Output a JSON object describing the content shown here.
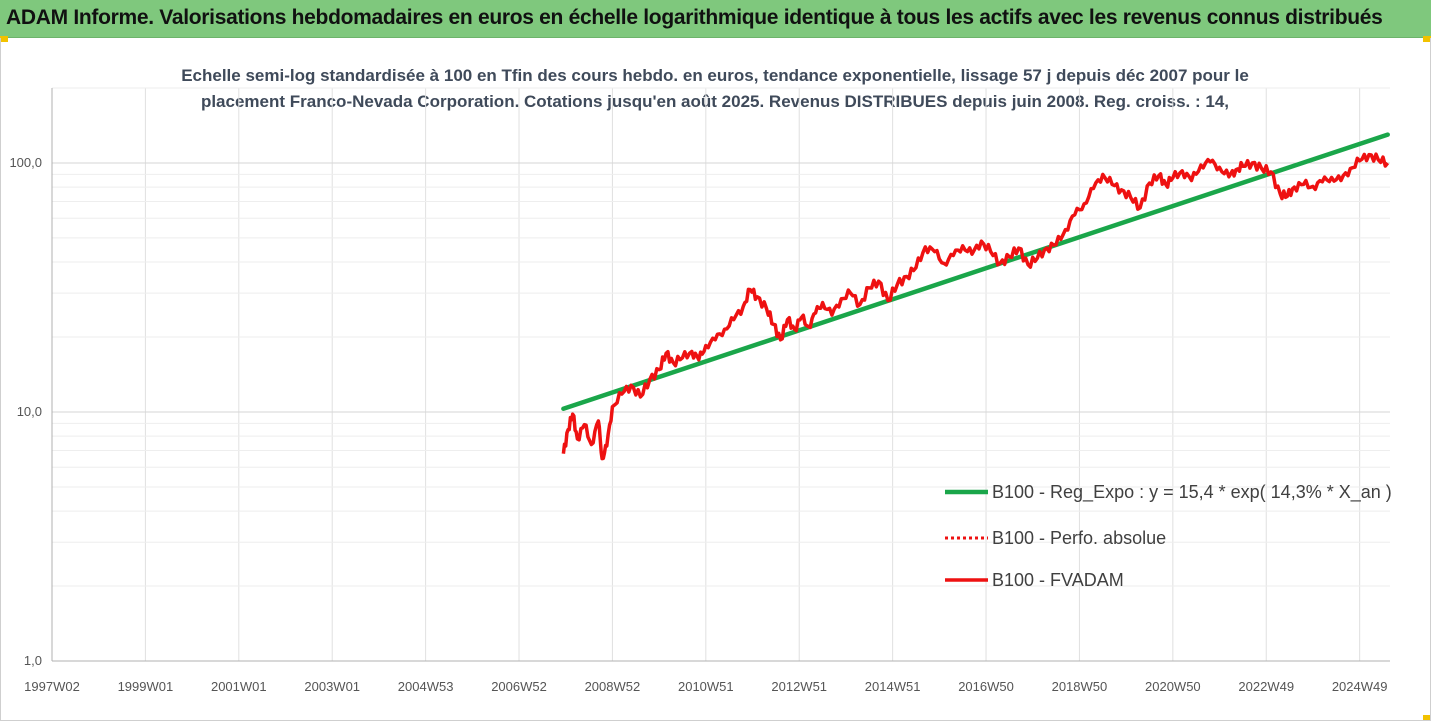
{
  "banner": {
    "title": "ADAM Informe. Valorisations hebdomadaires en euros en échelle logarithmique identique à tous les actifs avec les revenus connus distribués"
  },
  "colors": {
    "banner": "#7fc87d",
    "regression": "#1aa64a",
    "fvadam": "#ee1111",
    "gridline": "#e0e0e0"
  },
  "chart_data": {
    "type": "line",
    "title": "Echelle semi-log standardisée à 100 en Tfin des cours hebdo. en euros, tendance exponentielle, lissage 57 j depuis déc 2007 pour le placement Franco-Nevada Corporation. Cotations jusqu'en août 2025. Revenus DISTRIBUES depuis juin 2008. Reg. croiss. : 14,",
    "title_lines": [
      "Echelle semi-log standardisée à 100 en Tfin des cours hebdo. en euros, tendance exponentielle, lissage 57 j depuis déc 2007 pour le",
      "placement Franco-Nevada Corporation. Cotations jusqu'en août 2025. Revenus DISTRIBUES depuis juin 2008. Reg. croiss. : 14,"
    ],
    "y_scale": "log",
    "ylim": [
      1,
      200
    ],
    "y_ticks": [
      {
        "value": 1,
        "label": "1,0"
      },
      {
        "value": 10,
        "label": "10,0"
      },
      {
        "value": 100,
        "label": "100,0"
      }
    ],
    "xlim": [
      1997.0,
      2025.65
    ],
    "x_ticks": [
      {
        "value": 1997.0,
        "label": "1997W02"
      },
      {
        "value": 1999.0,
        "label": "1999W01"
      },
      {
        "value": 2001.0,
        "label": "2001W01"
      },
      {
        "value": 2003.0,
        "label": "2003W01"
      },
      {
        "value": 2005.0,
        "label": "2004W53"
      },
      {
        "value": 2007.0,
        "label": "2006W52"
      },
      {
        "value": 2009.0,
        "label": "2008W52"
      },
      {
        "value": 2011.0,
        "label": "2010W51"
      },
      {
        "value": 2013.0,
        "label": "2012W51"
      },
      {
        "value": 2015.0,
        "label": "2014W51"
      },
      {
        "value": 2017.0,
        "label": "2016W50"
      },
      {
        "value": 2019.0,
        "label": "2018W50"
      },
      {
        "value": 2021.0,
        "label": "2020W50"
      },
      {
        "value": 2023.0,
        "label": "2022W49"
      },
      {
        "value": 2025.0,
        "label": "2024W49"
      }
    ],
    "grid": {
      "vertical": true,
      "horizontal": true
    },
    "legend_position": "right",
    "series": [
      {
        "name": "B100 - Reg_Expo : y = 15,4 * exp( 14,3% *  X_an )",
        "style": "solid-green",
        "x": [
          2007.95,
          2025.6
        ],
        "y": [
          10.3,
          130
        ]
      },
      {
        "name": "B100 - Perfo. absolue",
        "style": "dotted-red",
        "x": [],
        "y": []
      },
      {
        "name": "B100 - FVADAM",
        "style": "solid-red",
        "x": [
          2007.95,
          2008.05,
          2008.15,
          2008.25,
          2008.4,
          2008.55,
          2008.7,
          2008.78,
          2008.88,
          2009.0,
          2009.2,
          2009.4,
          2009.6,
          2009.8,
          2010.0,
          2010.15,
          2010.3,
          2010.5,
          2010.7,
          2010.85,
          2011.0,
          2011.2,
          2011.4,
          2011.6,
          2011.8,
          2011.95,
          2012.1,
          2012.3,
          2012.45,
          2012.6,
          2012.75,
          2012.9,
          2013.05,
          2013.2,
          2013.35,
          2013.5,
          2013.7,
          2013.9,
          2014.1,
          2014.3,
          2014.5,
          2014.7,
          2014.9,
          2015.1,
          2015.3,
          2015.5,
          2015.7,
          2015.9,
          2016.1,
          2016.3,
          2016.5,
          2016.7,
          2016.9,
          2017.1,
          2017.3,
          2017.5,
          2017.7,
          2017.9,
          2018.1,
          2018.3,
          2018.5,
          2018.7,
          2018.9,
          2019.1,
          2019.3,
          2019.5,
          2019.7,
          2019.9,
          2020.1,
          2020.3,
          2020.5,
          2020.7,
          2020.85,
          2021.0,
          2021.2,
          2021.4,
          2021.6,
          2021.8,
          2022.0,
          2022.2,
          2022.35,
          2022.5,
          2022.7,
          2022.9,
          2023.1,
          2023.3,
          2023.45,
          2023.6,
          2023.8,
          2024.0,
          2024.2,
          2024.4,
          2024.6,
          2024.8,
          2025.0,
          2025.2,
          2025.4,
          2025.6
        ],
        "y": [
          6.8,
          8.5,
          9.8,
          7.8,
          8.9,
          7.4,
          9.2,
          6.5,
          7.3,
          10.5,
          11.8,
          12.8,
          11.5,
          13.5,
          14.8,
          17.2,
          15.8,
          16.5,
          17.5,
          16.2,
          18.5,
          19.5,
          21.5,
          23.5,
          26.5,
          31.0,
          29.0,
          26.0,
          22.5,
          19.5,
          23.5,
          21.5,
          24.0,
          22.0,
          25.0,
          27.5,
          24.5,
          28.5,
          30.0,
          27.0,
          31.5,
          33.5,
          28.0,
          32.5,
          35.0,
          38.0,
          46.0,
          44.0,
          39.5,
          42.5,
          46.5,
          43.0,
          48.5,
          44.0,
          39.5,
          42.0,
          45.5,
          39.0,
          41.5,
          45.5,
          47.0,
          54.0,
          62.0,
          68.5,
          79.0,
          90.0,
          82.0,
          78.0,
          72.5,
          66.0,
          83.0,
          89.0,
          82.0,
          87.0,
          93.0,
          85.0,
          98.0,
          101.0,
          96.0,
          88.0,
          94.0,
          97.0,
          100.0,
          95.0,
          92.0,
          75.0,
          73.5,
          80.0,
          82.0,
          80.5,
          84.0,
          87.5,
          85.0,
          95.0,
          102.0,
          108.0,
          103.0,
          100.0
        ]
      }
    ]
  }
}
